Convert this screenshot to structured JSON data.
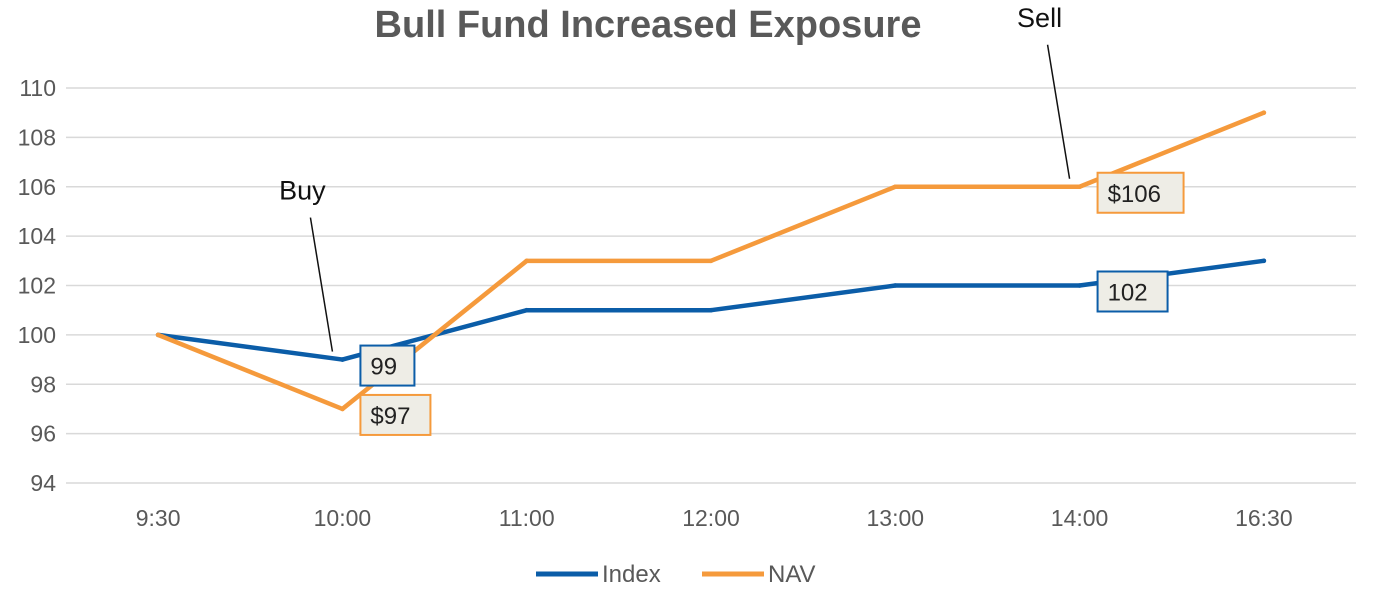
{
  "chart_data": {
    "type": "line",
    "title": "Bull Fund Increased Exposure",
    "categories": [
      "9:30",
      "10:00",
      "11:00",
      "12:00",
      "13:00",
      "14:00",
      "16:30"
    ],
    "ylim": [
      94,
      110
    ],
    "yticks": [
      94,
      96,
      98,
      100,
      102,
      104,
      106,
      108,
      110
    ],
    "grid": true,
    "legend_position": "bottom",
    "series": [
      {
        "name": "Index",
        "color": "#0B5DA8",
        "values": [
          100,
          99,
          101,
          101,
          102,
          102,
          103
        ]
      },
      {
        "name": "NAV",
        "color": "#F59A3C",
        "values": [
          100,
          97,
          103,
          103,
          106,
          106,
          109
        ]
      }
    ],
    "data_labels": [
      {
        "series": "Index",
        "index": 1,
        "text": "99"
      },
      {
        "series": "NAV",
        "index": 1,
        "text": "$97"
      },
      {
        "series": "NAV",
        "index": 5,
        "text": "$106"
      },
      {
        "series": "Index",
        "index": 5,
        "text": "102"
      }
    ],
    "annotations": [
      {
        "text": "Buy",
        "index": 1
      },
      {
        "text": "Sell",
        "index": 5
      }
    ]
  }
}
